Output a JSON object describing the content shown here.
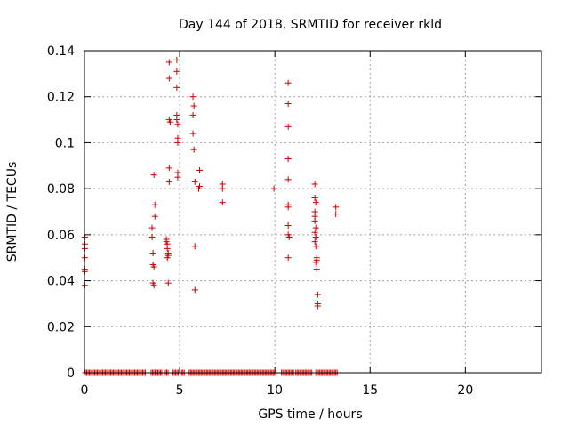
{
  "chart_data": {
    "type": "scatter",
    "title": "Day 144 of 2018, SRMTID for receiver rkld",
    "xlabel": "GPS time / hours",
    "ylabel": "SRMTID / TECUs",
    "xlim": [
      0,
      24
    ],
    "ylim": [
      0,
      0.14
    ],
    "xticks": [
      0,
      5,
      10,
      15,
      20
    ],
    "xtick_labels": [
      "0",
      "5",
      "10",
      "15",
      "20"
    ],
    "yticks": [
      0,
      0.02,
      0.04,
      0.06,
      0.08,
      0.1,
      0.12,
      0.14
    ],
    "ytick_labels": [
      "0",
      "0.02",
      "0.04",
      "0.06",
      "0.08",
      "0.1",
      "0.12",
      "0.14"
    ],
    "grid": true,
    "marker": "+",
    "color": "#cc0000",
    "series": [
      {
        "name": "SRMTID",
        "points": [
          [
            0.02,
            0.059
          ],
          [
            0.02,
            0.056
          ],
          [
            0.02,
            0.054
          ],
          [
            0.02,
            0.05
          ],
          [
            0.02,
            0.045
          ],
          [
            0.02,
            0.044
          ],
          [
            0.02,
            0.038
          ],
          [
            3.55,
            0.063
          ],
          [
            3.55,
            0.059
          ],
          [
            3.6,
            0.052
          ],
          [
            3.6,
            0.047
          ],
          [
            3.65,
            0.046
          ],
          [
            3.6,
            0.039
          ],
          [
            3.65,
            0.038
          ],
          [
            3.65,
            0.086
          ],
          [
            3.7,
            0.073
          ],
          [
            3.7,
            0.068
          ],
          [
            4.3,
            0.058
          ],
          [
            4.3,
            0.057
          ],
          [
            4.35,
            0.056
          ],
          [
            4.35,
            0.054
          ],
          [
            4.4,
            0.052
          ],
          [
            4.4,
            0.051
          ],
          [
            4.35,
            0.05
          ],
          [
            4.4,
            0.039
          ],
          [
            4.45,
            0.135
          ],
          [
            4.45,
            0.128
          ],
          [
            4.45,
            0.11
          ],
          [
            4.5,
            0.109
          ],
          [
            4.45,
            0.089
          ],
          [
            4.45,
            0.083
          ],
          [
            4.85,
            0.136
          ],
          [
            4.85,
            0.131
          ],
          [
            4.85,
            0.124
          ],
          [
            4.85,
            0.112
          ],
          [
            4.85,
            0.11
          ],
          [
            4.9,
            0.108
          ],
          [
            4.9,
            0.102
          ],
          [
            4.9,
            0.1
          ],
          [
            4.9,
            0.087
          ],
          [
            4.9,
            0.085
          ],
          [
            5.7,
            0.12
          ],
          [
            5.75,
            0.116
          ],
          [
            5.7,
            0.112
          ],
          [
            5.7,
            0.104
          ],
          [
            5.75,
            0.097
          ],
          [
            5.8,
            0.083
          ],
          [
            5.8,
            0.055
          ],
          [
            5.8,
            0.036
          ],
          [
            6.05,
            0.088
          ],
          [
            6.05,
            0.081
          ],
          [
            6.0,
            0.08
          ],
          [
            7.25,
            0.082
          ],
          [
            7.25,
            0.08
          ],
          [
            7.25,
            0.074
          ],
          [
            9.95,
            0.08
          ],
          [
            10.7,
            0.126
          ],
          [
            10.7,
            0.117
          ],
          [
            10.7,
            0.107
          ],
          [
            10.7,
            0.093
          ],
          [
            10.7,
            0.084
          ],
          [
            10.7,
            0.073
          ],
          [
            10.7,
            0.072
          ],
          [
            10.7,
            0.064
          ],
          [
            10.7,
            0.06
          ],
          [
            10.75,
            0.059
          ],
          [
            10.7,
            0.05
          ],
          [
            12.1,
            0.082
          ],
          [
            12.1,
            0.076
          ],
          [
            12.15,
            0.074
          ],
          [
            12.1,
            0.07
          ],
          [
            12.1,
            0.068
          ],
          [
            12.1,
            0.066
          ],
          [
            12.15,
            0.063
          ],
          [
            12.1,
            0.061
          ],
          [
            12.15,
            0.059
          ],
          [
            12.1,
            0.057
          ],
          [
            12.15,
            0.055
          ],
          [
            12.2,
            0.05
          ],
          [
            12.2,
            0.049
          ],
          [
            12.15,
            0.048
          ],
          [
            12.2,
            0.045
          ],
          [
            12.25,
            0.034
          ],
          [
            12.25,
            0.03
          ],
          [
            12.25,
            0.029
          ],
          [
            13.2,
            0.072
          ],
          [
            13.2,
            0.069
          ]
        ]
      }
    ],
    "zero_band": [
      [
        0.05,
        3.25
      ],
      [
        3.5,
        4.1
      ],
      [
        4.25,
        4.45
      ],
      [
        4.65,
        4.95
      ],
      [
        5.1,
        5.3
      ],
      [
        5.5,
        10.1
      ],
      [
        10.35,
        11.0
      ],
      [
        11.1,
        12.0
      ],
      [
        12.15,
        13.3
      ]
    ]
  }
}
